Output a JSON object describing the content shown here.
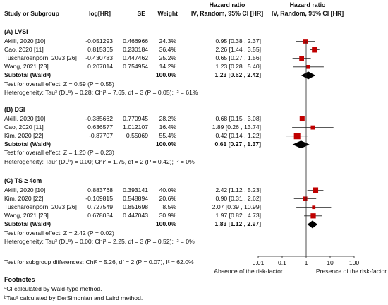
{
  "header": {
    "col_study": "Study or Subgroup",
    "col_loghr": "log[HR]",
    "col_se": "SE",
    "col_weight": "Weight",
    "col_hr_title": "Hazard ratio",
    "col_hr_sub": "IV, Random, 95% CI [HR]",
    "plot_title": "Hazard ratio",
    "plot_sub": "IV, Random, 95% CI [HR]"
  },
  "groups": [
    {
      "title": "(A) LVSI",
      "studies": [
        {
          "study": "Akilli, 2020 [10]",
          "loghr": "-0.051293",
          "se": "0.466966",
          "weight": "24.3%",
          "ci": "0.95 [0.38 , 2.37]",
          "hr": 0.95,
          "lo": 0.38,
          "hi": 2.37,
          "w": 24.3
        },
        {
          "study": "Cao, 2020 [11]",
          "loghr": "0.815365",
          "se": "0.230184",
          "weight": "36.4%",
          "ci": "2.26 [1.44 , 3.55]",
          "hr": 2.26,
          "lo": 1.44,
          "hi": 3.55,
          "w": 36.4
        },
        {
          "study": "Tuscharoenporn, 2023 [26]",
          "loghr": "-0.430783",
          "se": "0.447462",
          "weight": "25.2%",
          "ci": "0.65 [0.27 , 1.56]",
          "hr": 0.65,
          "lo": 0.27,
          "hi": 1.56,
          "w": 25.2
        },
        {
          "study": "Wang, 2021 [23]",
          "loghr": "0.207014",
          "se": "0.754954",
          "weight": "14.2%",
          "ci": "1.23 [0.28 , 5.40]",
          "hr": 1.23,
          "lo": 0.28,
          "hi": 5.4,
          "w": 14.2
        }
      ],
      "subtotal": {
        "label": "Subtotal (Waldᵃ)",
        "weight": "100.0%",
        "ci": "1.23 [0.62 , 2.42]",
        "hr": 1.23,
        "lo": 0.62,
        "hi": 2.42
      },
      "overall": "Test for overall effect: Z = 0.59 (P = 0.55)",
      "heterogeneity": "Heterogeneity: Tau² (DLᵇ) = 0.28; Chi² = 7.65, df = 3 (P = 0.05); I² = 61%"
    },
    {
      "title": "(B) DSI",
      "studies": [
        {
          "study": "Akilli, 2020 [10]",
          "loghr": "-0.385662",
          "se": "0.770945",
          "weight": "28.2%",
          "ci": "0.68 [0.15 , 3.08]",
          "hr": 0.68,
          "lo": 0.15,
          "hi": 3.08,
          "w": 28.2
        },
        {
          "study": "Cao, 2020 [11]",
          "loghr": "0.636577",
          "se": "1.012107",
          "weight": "16.4%",
          "ci": "1.89 [0.26 , 13.74]",
          "hr": 1.89,
          "lo": 0.26,
          "hi": 13.74,
          "w": 16.4
        },
        {
          "study": "Kim, 2020 [22]",
          "loghr": "-0.87707",
          "se": "0.55069",
          "weight": "55.4%",
          "ci": "0.42 [0.14 , 1.22]",
          "hr": 0.42,
          "lo": 0.14,
          "hi": 1.22,
          "w": 55.4
        }
      ],
      "subtotal": {
        "label": "Subtotal (Waldᵃ)",
        "weight": "100.0%",
        "ci": "0.61 [0.27 , 1.37]",
        "hr": 0.61,
        "lo": 0.27,
        "hi": 1.37
      },
      "overall": "Test for overall effect: Z = 1.20 (P = 0.23)",
      "heterogeneity": "Heterogeneity: Tau² (DLᵇ) = 0.00; Chi² = 1.75, df = 2 (P = 0.42); I² = 0%"
    },
    {
      "title": "(C) TS ≥ 4cm",
      "studies": [
        {
          "study": "Akilli, 2020 [10]",
          "loghr": "0.883768",
          "se": "0.393141",
          "weight": "40.0%",
          "ci": "2.42 [1.12 , 5.23]",
          "hr": 2.42,
          "lo": 1.12,
          "hi": 5.23,
          "w": 40.0
        },
        {
          "study": "Kim, 2020 [22]",
          "loghr": "-0.109815",
          "se": "0.548894",
          "weight": "20.6%",
          "ci": "0.90 [0.31 , 2.62]",
          "hr": 0.9,
          "lo": 0.31,
          "hi": 2.62,
          "w": 20.6
        },
        {
          "study": "Tuscharoenporn, 2023 [26]",
          "loghr": "0.727549",
          "se": "0.851698",
          "weight": "8.5%",
          "ci": "2.07 [0.39 , 10.99]",
          "hr": 2.07,
          "lo": 0.39,
          "hi": 10.99,
          "w": 8.5
        },
        {
          "study": "Wang, 2021 [23]",
          "loghr": "0.678034",
          "se": "0.447043",
          "weight": "30.9%",
          "ci": "1.97 [0.82 , 4.73]",
          "hr": 1.97,
          "lo": 0.82,
          "hi": 4.73,
          "w": 30.9
        }
      ],
      "subtotal": {
        "label": "Subtotal (Waldᵃ)",
        "weight": "100.0%",
        "ci": "1.83 [1.12 , 2.97]",
        "hr": 1.83,
        "lo": 1.12,
        "hi": 2.97
      },
      "overall": "Test for overall effect: Z = 2.42 (P = 0.02)",
      "heterogeneity": "Heterogeneity: Tau² (DLᵇ) = 0.00; Chi² = 2.25, df = 3 (P = 0.52); I² = 0%"
    }
  ],
  "subgroup_test": "Test for subgroup differences: Chi² = 5.26, df = 2 (P = 0.07), I² = 62.0%",
  "axis": {
    "ticks": [
      {
        "value": 0.01,
        "label": "0.01"
      },
      {
        "value": 0.1,
        "label": "0.1"
      },
      {
        "value": 1,
        "label": "1"
      },
      {
        "value": 10,
        "label": "10"
      },
      {
        "value": 100,
        "label": "100"
      }
    ],
    "left_label": "Absence of the risk-factor",
    "right_label": "Presence of the risk-factor"
  },
  "footnotes": {
    "title": "Footnotes",
    "a": "ᵃCI calculated by Wald-type method.",
    "b": "ᵇTau² calculated by DerSimonian and Laird method."
  },
  "colors": {
    "marker": "#c00000",
    "diamond": "#000000",
    "line": "#222222"
  },
  "chart_data": {
    "type": "forest",
    "scale": "log",
    "xlim": [
      0.01,
      100
    ],
    "reference": 1,
    "legend": "none",
    "grid": false
  }
}
